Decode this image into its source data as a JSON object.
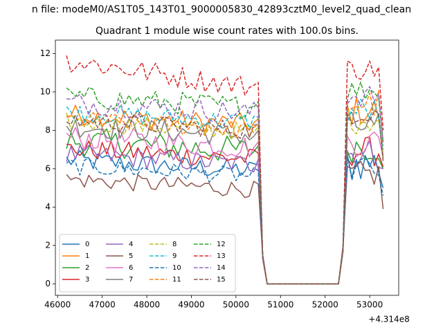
{
  "figure": {
    "suptitle": "n file: modeM0/AS1T05_143T01_9000005830_42893cztM0_level2_quad_clean",
    "offset_label": "+4.314e8"
  },
  "chart_data": {
    "type": "line",
    "title": "Quadrant 1 module wise count rates with 100.0s bins.",
    "xlabel": "",
    "ylabel": "",
    "x_offset": 431400000,
    "xlim": [
      45950,
      53650
    ],
    "ylim": [
      -0.6,
      12.7
    ],
    "xticks": [
      46000,
      47000,
      48000,
      49000,
      50000,
      51000,
      52000,
      53000
    ],
    "xtick_labels": [
      "46000",
      "47000",
      "48000",
      "49000",
      "50000",
      "51000",
      "52000",
      "53000"
    ],
    "yticks": [
      0,
      2,
      4,
      6,
      8,
      10,
      12
    ],
    "ytick_labels": [
      "0",
      "2",
      "4",
      "6",
      "8",
      "10",
      "12"
    ],
    "grid": false,
    "legend_position": "lower-left",
    "legend_columns": 4,
    "segments": {
      "active1": {
        "start": 46200,
        "end": 50500,
        "step": 100
      },
      "drop": [
        50600,
        50700
      ],
      "gap": {
        "start": 50700,
        "end": 52300
      },
      "rise": [
        52400,
        52500
      ],
      "active2": {
        "start": 52500,
        "end": 53300,
        "step": 100
      }
    },
    "series": [
      {
        "name": "0",
        "color": "#1f77b4",
        "dash": "solid",
        "mean1": 5.9,
        "amp1": 0.55,
        "mean2": 6.3,
        "amp2": 1.0,
        "end": 5.0
      },
      {
        "name": "1",
        "color": "#ff7f0e",
        "dash": "solid",
        "mean1": 8.3,
        "amp1": 0.55,
        "mean2": 9.0,
        "amp2": 0.8,
        "end": 6.5
      },
      {
        "name": "2",
        "color": "#2ca02c",
        "dash": "solid",
        "mean1": 6.9,
        "amp1": 0.75,
        "mean2": 7.2,
        "amp2": 0.9,
        "end": 6.0
      },
      {
        "name": "3",
        "color": "#d62728",
        "dash": "solid",
        "mean1": 6.5,
        "amp1": 0.55,
        "mean2": 6.9,
        "amp2": 0.8,
        "end": 6.1
      },
      {
        "name": "4",
        "color": "#9467bd",
        "dash": "solid",
        "mean1": 6.2,
        "amp1": 0.55,
        "mean2": 6.8,
        "amp2": 0.8,
        "end": 6.0
      },
      {
        "name": "5",
        "color": "#8c564b",
        "dash": "solid",
        "mean1": 4.9,
        "amp1": 0.45,
        "mean2": 5.7,
        "amp2": 0.7,
        "end": 3.9
      },
      {
        "name": "6",
        "color": "#e377c2",
        "dash": "solid",
        "mean1": 7.1,
        "amp1": 0.65,
        "mean2": 7.4,
        "amp2": 0.8,
        "end": 6.6
      },
      {
        "name": "7",
        "color": "#7f7f7f",
        "dash": "solid",
        "mean1": 7.7,
        "amp1": 0.6,
        "mean2": 8.2,
        "amp2": 0.8,
        "end": 6.6
      },
      {
        "name": "8",
        "color": "#bcbd22",
        "dash": "dashed",
        "mean1": 7.9,
        "amp1": 0.5,
        "mean2": 8.6,
        "amp2": 0.8,
        "end": 6.8
      },
      {
        "name": "9",
        "color": "#17becf",
        "dash": "dashed",
        "mean1": 8.4,
        "amp1": 0.5,
        "mean2": 9.0,
        "amp2": 0.8,
        "end": 7.0
      },
      {
        "name": "10",
        "color": "#1f77b4",
        "dash": "dashed",
        "mean1": 5.6,
        "amp1": 0.45,
        "mean2": 6.0,
        "amp2": 0.8,
        "end": 4.6
      },
      {
        "name": "11",
        "color": "#ff7f0e",
        "dash": "dashed",
        "mean1": 8.0,
        "amp1": 0.5,
        "mean2": 9.4,
        "amp2": 0.8,
        "end": 7.2
      },
      {
        "name": "12",
        "color": "#2ca02c",
        "dash": "dashed",
        "mean1": 9.2,
        "amp1": 0.6,
        "mean2": 10.1,
        "amp2": 0.6,
        "end": 7.4
      },
      {
        "name": "13",
        "color": "#d62728",
        "dash": "dashed",
        "mean1": 10.2,
        "amp1": 0.6,
        "mean2": 11.2,
        "amp2": 0.6,
        "end": 8.0
      },
      {
        "name": "14",
        "color": "#9467bd",
        "dash": "dashed",
        "mean1": 8.9,
        "amp1": 0.6,
        "mean2": 9.8,
        "amp2": 0.6,
        "end": 7.4
      },
      {
        "name": "15",
        "color": "#8c564b",
        "dash": "dashed",
        "mean1": 8.0,
        "amp1": 0.5,
        "mean2": 9.0,
        "amp2": 0.7,
        "end": 6.4
      }
    ]
  }
}
